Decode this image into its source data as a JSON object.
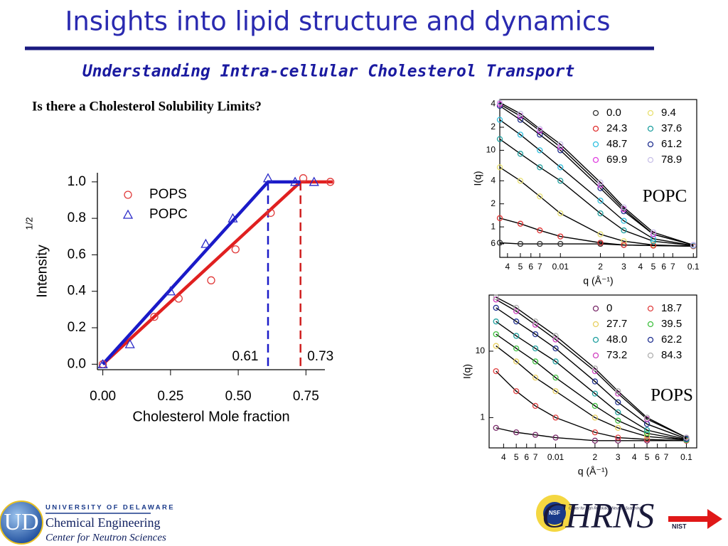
{
  "title": "Insights into lipid structure and dynamics",
  "subtitle": "Understanding Intra-cellular Cholesterol Transport",
  "question": "Is there a Cholesterol Solubility Limits?",
  "logos": {
    "university": "UNIVERSITY OF DELAWARE",
    "department": "Chemical Engineering",
    "center": "Center for Neutron Sciences",
    "chrns": "CHRNS",
    "chrns_full": "Center for High Resolution Neutron Scattering",
    "nsf": "NSF",
    "nist": "NIST"
  },
  "chart_data": [
    {
      "type": "scatter",
      "xlabel": "Cholesterol Mole fraction",
      "ylabel": "Intensity",
      "ylabel_sup": "1/2",
      "xlim": [
        -0.02,
        0.82
      ],
      "ylim": [
        -0.03,
        1.05
      ],
      "xticks": [
        {
          "value": 0,
          "label": "0.00"
        },
        0.25,
        {
          "value": 0.5,
          "label": "0.50"
        },
        0.75
      ],
      "yticks": [
        {
          "value": 0,
          "label": "0.0"
        },
        0.2,
        0.4,
        0.6,
        0.8,
        {
          "value": 1,
          "label": "1.0"
        }
      ],
      "series": [
        {
          "name": "POPS",
          "color": "#e03a3a",
          "marker": "circle",
          "x": [
            0,
            0.19,
            0.28,
            0.4,
            0.49,
            0.62,
            0.74,
            0.84
          ],
          "values": [
            0,
            0.26,
            0.36,
            0.46,
            0.63,
            0.83,
            1.02,
            1.0
          ]
        },
        {
          "name": "POPC",
          "color": "#2a2ac8",
          "marker": "triangle",
          "x": [
            0,
            0.1,
            0.25,
            0.38,
            0.48,
            0.61,
            0.71,
            0.78
          ],
          "values": [
            0,
            0.11,
            0.4,
            0.66,
            0.8,
            1.02,
            1.0,
            1.0
          ]
        }
      ],
      "fits": [
        {
          "color": "#e02020",
          "x": [
            0,
            0.73,
            0.85
          ],
          "values": [
            0,
            1,
            1
          ]
        },
        {
          "color": "#1a1ac8",
          "x": [
            0,
            0.61,
            0.73
          ],
          "values": [
            0,
            1,
            1
          ]
        }
      ],
      "annotations": [
        0.61,
        0.73
      ],
      "annotation_colors": [
        "#1a1ac8",
        "#d02020"
      ]
    },
    {
      "type": "line",
      "label": "POPC",
      "xlabel": "q (Å⁻¹)",
      "ylabel": "I(q)",
      "log_x": true,
      "log_y": true,
      "xlim": [
        0.0035,
        0.106
      ],
      "ylim": [
        0.4,
        46
      ],
      "xticks": [
        {
          "value": 0.004,
          "label": "4"
        },
        {
          "value": 0.005,
          "label": "5"
        },
        {
          "value": 0.006,
          "label": "6"
        },
        {
          "value": 0.007,
          "label": "7"
        },
        0.01,
        {
          "value": 0.02,
          "label": "2"
        },
        {
          "value": 0.03,
          "label": "3"
        },
        {
          "value": 0.04,
          "label": "4"
        },
        {
          "value": 0.05,
          "label": "5"
        },
        {
          "value": 0.06,
          "label": "6"
        },
        {
          "value": 0.07,
          "label": "7"
        },
        0.1
      ],
      "yticks": [
        {
          "value": 40,
          "label": "4"
        },
        {
          "value": 20,
          "label": "2"
        },
        10,
        {
          "value": 4,
          "label": "4"
        },
        {
          "value": 2,
          "label": "2"
        },
        1,
        {
          "value": 0.6,
          "label": "6"
        }
      ],
      "x": [
        0.0035,
        0.005,
        0.007,
        0.01,
        0.02,
        0.03,
        0.05,
        0.1
      ],
      "series": [
        {
          "name": "0.0",
          "color": "#333333",
          "values": [
            0.62,
            0.6,
            0.6,
            0.6,
            0.6,
            0.58,
            0.57,
            0.56
          ]
        },
        {
          "name": "9.4",
          "color": "#e8e070",
          "values": [
            6,
            4,
            2.5,
            1.5,
            0.8,
            0.65,
            0.58,
            0.56
          ]
        },
        {
          "name": "24.3",
          "color": "#e03030",
          "values": [
            1.3,
            1.1,
            0.9,
            0.75,
            0.62,
            0.58,
            0.57,
            0.56
          ]
        },
        {
          "name": "37.6",
          "color": "#20a0a0",
          "values": [
            14,
            9,
            6,
            4,
            1.5,
            0.9,
            0.65,
            0.57
          ]
        },
        {
          "name": "48.7",
          "color": "#30c0e0",
          "values": [
            25,
            16,
            10,
            6,
            2.2,
            1.2,
            0.7,
            0.57
          ]
        },
        {
          "name": "61.2",
          "color": "#203090",
          "values": [
            38,
            25,
            16,
            10,
            3.2,
            1.6,
            0.8,
            0.58
          ]
        },
        {
          "name": "69.9",
          "color": "#e040e0",
          "values": [
            40,
            28,
            18,
            11,
            3.5,
            1.7,
            0.8,
            0.58
          ]
        },
        {
          "name": "78.9",
          "color": "#c8c0e8",
          "values": [
            42,
            30,
            19,
            12,
            3.8,
            1.8,
            0.85,
            0.58
          ]
        }
      ]
    },
    {
      "type": "line",
      "label": "POPS",
      "xlabel": "q (Å⁻¹)",
      "ylabel": "I(q)",
      "log_x": true,
      "log_y": true,
      "xlim": [
        0.0031,
        0.12
      ],
      "ylim": [
        0.35,
        70
      ],
      "xticks": [
        {
          "value": 0.004,
          "label": "4"
        },
        {
          "value": 0.005,
          "label": "5"
        },
        {
          "value": 0.006,
          "label": "6"
        },
        {
          "value": 0.007,
          "label": "7"
        },
        0.01,
        {
          "value": 0.02,
          "label": "2"
        },
        {
          "value": 0.03,
          "label": "3"
        },
        {
          "value": 0.04,
          "label": "4"
        },
        {
          "value": 0.05,
          "label": "5"
        },
        {
          "value": 0.06,
          "label": "6"
        },
        {
          "value": 0.07,
          "label": "7"
        },
        0.1
      ],
      "yticks": [
        10,
        1
      ],
      "x": [
        0.0035,
        0.005,
        0.007,
        0.01,
        0.02,
        0.03,
        0.05,
        0.1
      ],
      "series": [
        {
          "name": "0",
          "color": "#7a2a6a",
          "values": [
            0.7,
            0.6,
            0.55,
            0.5,
            0.45,
            0.45,
            0.45,
            0.45
          ]
        },
        {
          "name": "18.7",
          "color": "#e04040",
          "values": [
            5,
            2.5,
            1.5,
            1.0,
            0.6,
            0.5,
            0.47,
            0.45
          ]
        },
        {
          "name": "27.7",
          "color": "#e8d060",
          "values": [
            12,
            7,
            4,
            2.5,
            1.0,
            0.7,
            0.52,
            0.46
          ]
        },
        {
          "name": "39.5",
          "color": "#40c040",
          "values": [
            18,
            11,
            7,
            4,
            1.5,
            0.9,
            0.58,
            0.46
          ]
        },
        {
          "name": "48.0",
          "color": "#20a0a0",
          "values": [
            28,
            17,
            11,
            7,
            2.3,
            1.2,
            0.65,
            0.47
          ]
        },
        {
          "name": "62.2",
          "color": "#203090",
          "values": [
            45,
            28,
            18,
            11,
            3.5,
            1.7,
            0.8,
            0.48
          ]
        },
        {
          "name": "73.2",
          "color": "#d040c0",
          "values": [
            60,
            40,
            25,
            15,
            5,
            2.3,
            0.95,
            0.5
          ]
        },
        {
          "name": "84.3",
          "color": "#b0b0b0",
          "values": [
            65,
            45,
            28,
            17,
            5.5,
            2.5,
            1.0,
            0.5
          ]
        }
      ]
    }
  ]
}
